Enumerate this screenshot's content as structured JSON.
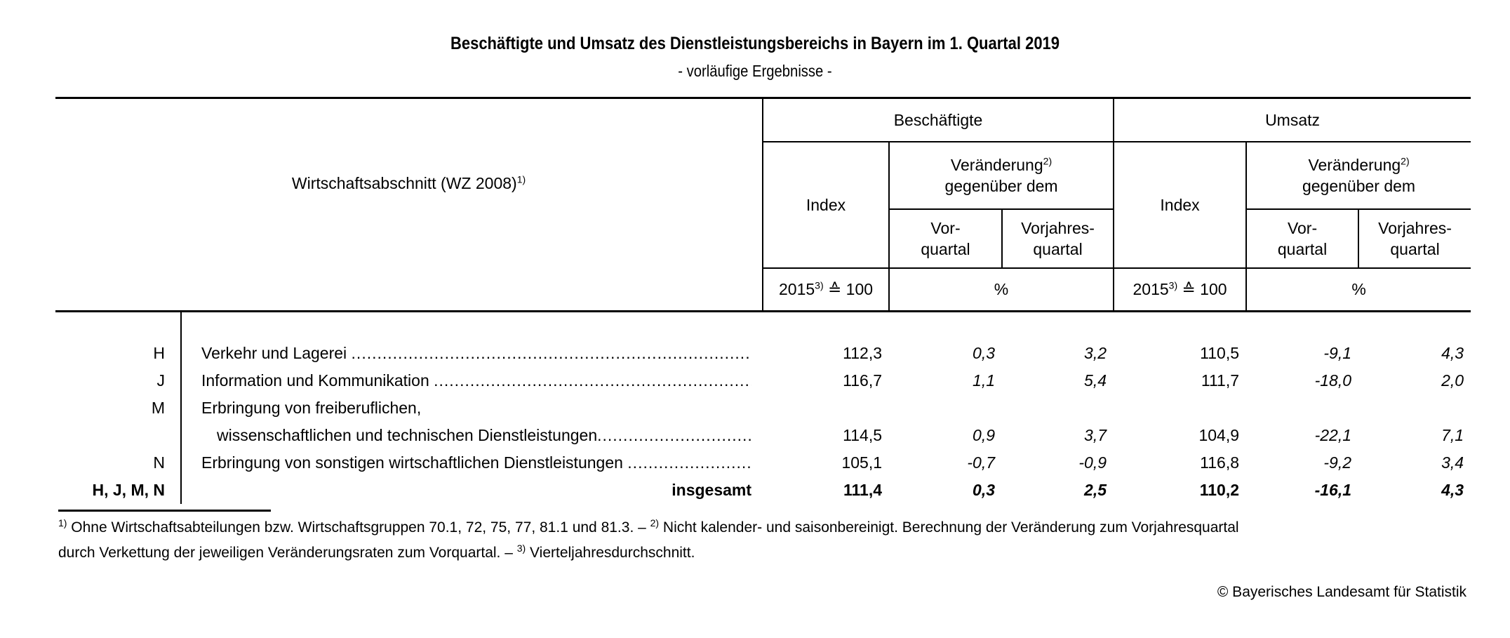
{
  "title": "Beschäftigte und Umsatz des Dienstleistungsbereichs in Bayern im 1. Quartal 2019",
  "subtitle": "- vorläufige Ergebnisse -",
  "header": {
    "section_label": "Wirtschaftsabschnitt (WZ 2008)",
    "section_sup": "1)",
    "beschaeftigte": "Beschäftigte",
    "umsatz": "Umsatz",
    "index": "Index",
    "veraenderung": "Veränderung",
    "veraenderung_sup": "2)",
    "gegenueber": "gegenüber dem",
    "vor_1": "Vor-",
    "vor_2": "quartal",
    "vorj_1": "Vorjahres-",
    "vorj_2": "quartal",
    "base_year": "2015",
    "base_sup": "3)",
    "base_rest": " ≙ 100",
    "percent": "%"
  },
  "rows": [
    {
      "code": "H",
      "label": "Verkehr und Lagerei",
      "values": [
        "112,3",
        "0,3",
        "3,2",
        "110,5",
        "-9,1",
        "4,3"
      ]
    },
    {
      "code": "J",
      "label": "Information und Kommunikation",
      "values": [
        "116,7",
        "1,1",
        "5,4",
        "111,7",
        "-18,0",
        "2,0"
      ]
    },
    {
      "code": "M",
      "label": "Erbringung von freiberuflichen,",
      "label2": "wissenschaftlichen und technischen Dienstleistungen",
      "values": [
        "114,5",
        "0,9",
        "3,7",
        "104,9",
        "-22,1",
        "7,1"
      ]
    },
    {
      "code": "N",
      "label": "Erbringung von sonstigen wirtschaftlichen Dienstleistungen",
      "values": [
        "105,1",
        "-0,7",
        "-0,9",
        "116,8",
        "-9,2",
        "3,4"
      ]
    },
    {
      "code": "H, J, M, N",
      "label": "insgesamt",
      "values": [
        "111,4",
        "0,3",
        "2,5",
        "110,2",
        "-16,1",
        "4,3"
      ]
    }
  ],
  "footnotes": {
    "f1_sup": "1)",
    "f1": " Ohne Wirtschaftsabteilungen bzw. Wirtschaftsgruppen  70.1, 72, 75, 77, 81.1 und 81.3. – ",
    "f2_sup": "2)",
    "f2": " Nicht kalender- und saisonbereinigt. Berechnung der Veränderung zum Vorjahresquartal",
    "f2b": "durch Verkettung der jeweiligen Veränderungsraten zum Vorquartal. – ",
    "f3_sup": "3)",
    "f3": " Vierteljahresdurchschnitt."
  },
  "copyright": "© Bayerisches Landesamt für Statistik"
}
